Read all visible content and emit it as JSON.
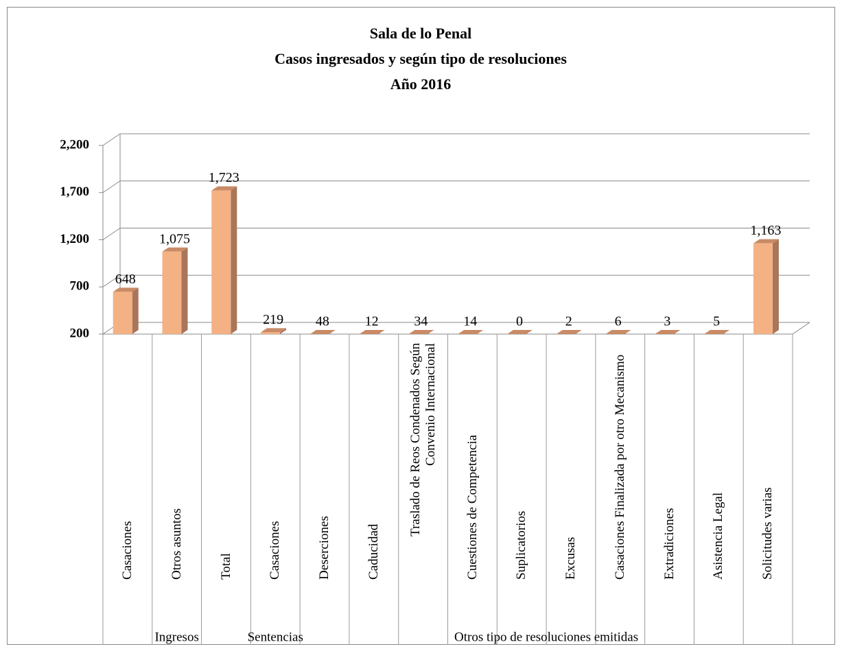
{
  "chart_data": {
    "type": "bar3d",
    "title": [
      "Sala de lo Penal",
      "Casos ingresados y según tipo de resoluciones",
      "Año 2016"
    ],
    "categories": [
      "Casaciones",
      "Otros asuntos",
      "Total",
      "Casaciones",
      "Deserciones",
      "Caducidad",
      "Traslado de Reos Condenados Según Convenio Internacional",
      "Cuestiones de Competencia",
      "Suplicatorios",
      "Excusas",
      "Casaciones Finalizada por otro Mecanismo",
      "Extradiciones",
      "Asistencia Legal",
      "Solicitudes varias"
    ],
    "groups": [
      {
        "label": "Ingresos",
        "span": 3
      },
      {
        "label": "Sentencias",
        "span": 1
      },
      {
        "label": "Otros tipo de resoluciones emitidas",
        "span": 10
      }
    ],
    "values": [
      648,
      1075,
      1723,
      219,
      48,
      12,
      34,
      14,
      0,
      2,
      6,
      3,
      5,
      1163
    ],
    "value_labels": [
      "648",
      "1,075",
      "1,723",
      "219",
      "48",
      "12",
      "34",
      "14",
      "0",
      "2",
      "6",
      "3",
      "5",
      "1,163"
    ],
    "color": "#f4b183",
    "ylim": [
      200,
      2200
    ],
    "yticks": [
      200,
      700,
      {
        "value": 1200,
        "label": "1,200"
      },
      {
        "value": 1700,
        "label": "1,700"
      },
      {
        "value": 2200,
        "label": "2,200"
      }
    ],
    "grid": true
  }
}
